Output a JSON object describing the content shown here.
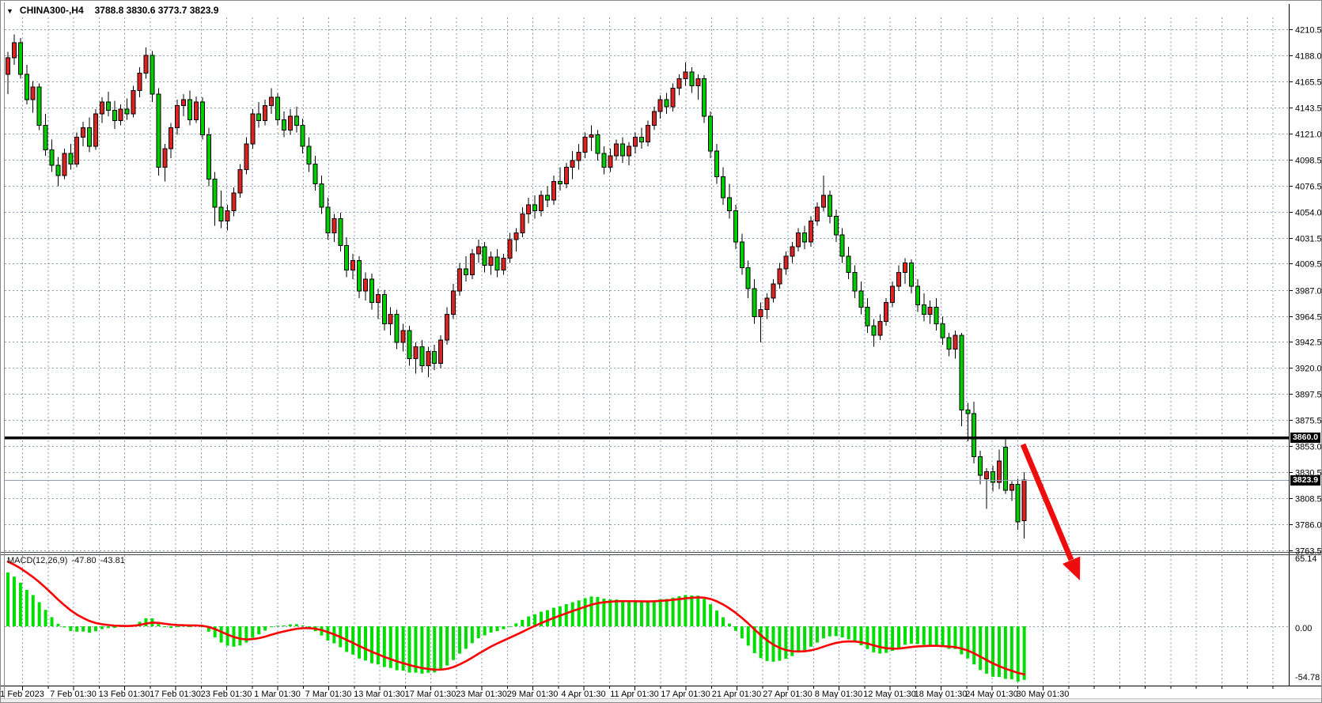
{
  "header": {
    "dropdown_icon": "▼",
    "symbol_period": "CHINA300-,H4",
    "ohlc": "3788.8 3830.6 3773.7 3823.9"
  },
  "indicator": {
    "label": "MACD(12,26,9)",
    "macd_value": "-47.80",
    "signal_value": "-43.81"
  },
  "price_axis": {
    "line_badge": "3860.0",
    "current_badge": "3823.9"
  },
  "macd_axis": {
    "tick_labels": [
      "65.14",
      "0.00",
      "-54.78"
    ]
  },
  "time_axis": {
    "labels": [
      "1 Feb 2023",
      "7 Feb 01:30",
      "13 Feb 01:30",
      "17 Feb 01:30",
      "23 Feb 01:30",
      "1 Mar 01:30",
      "7 Mar 01:30",
      "13 Mar 01:30",
      "17 Mar 01:30",
      "23 Mar 01:30",
      "29 Mar 01:30",
      "4 Apr 01:30",
      "11 Apr 01:30",
      "17 Apr 01:30",
      "21 Apr 01:30",
      "27 Apr 01:30",
      "8 May 01:30",
      "12 May 01:30",
      "18 May 01:30",
      "24 May 01:30",
      "30 May 01:30"
    ]
  },
  "colors": {
    "bull": "#dd2222",
    "bear": "#00cc00",
    "wick": "#000000",
    "grid": "#8a9cae",
    "macd_hist": "#00dd00",
    "macd_signal": "#ff0000",
    "hline": "#000000",
    "current_price_line": "#93a1b0",
    "arrow": "#ee0c0c",
    "badge_bg": "#000000",
    "badge_text": "#ffffff"
  },
  "chart_data": {
    "type": "candlestick",
    "symbol": "CHINA300-",
    "timeframe": "H4",
    "title": "CHINA300-,H4",
    "grid": "dashed",
    "price_ticks": [
      4210.5,
      4188.0,
      4165.5,
      4143.5,
      4121.0,
      4098.5,
      4076.5,
      4054.0,
      4031.5,
      4009.5,
      3987.0,
      3964.5,
      3942.5,
      3920.0,
      3897.5,
      3875.5,
      3853.0,
      3830.5,
      3808.5,
      3786.0,
      3763.5
    ],
    "price_range": [
      3763.5,
      4210.5
    ],
    "macd_ticks": [
      65.14,
      0.0,
      -54.78
    ],
    "macd_range": [
      -54.78,
      65.14
    ],
    "horizontal_line": 3860.0,
    "current_price": 3823.9,
    "last_bar": {
      "open": 3788.8,
      "high": 3830.6,
      "low": 3773.7,
      "close": 3823.9
    },
    "indicator": {
      "name": "MACD",
      "fast": 12,
      "slow": 26,
      "signal": 9,
      "values": [
        -47.8,
        -43.81
      ]
    },
    "objects": [
      {
        "type": "horizontal-line",
        "price": 3860.0
      },
      {
        "type": "arrow",
        "direction": "down-right",
        "color": "#ee0c0c"
      }
    ],
    "candles": [
      [
        4172,
        4191,
        4155,
        4186
      ],
      [
        4186,
        4206,
        4180,
        4199
      ],
      [
        4199,
        4203,
        4168,
        4172
      ],
      [
        4172,
        4180,
        4146,
        4150
      ],
      [
        4150,
        4166,
        4139,
        4161
      ],
      [
        4161,
        4164,
        4124,
        4128
      ],
      [
        4128,
        4138,
        4102,
        4107
      ],
      [
        4107,
        4116,
        4088,
        4094
      ],
      [
        4094,
        4101,
        4076,
        4085
      ],
      [
        4085,
        4108,
        4082,
        4104
      ],
      [
        4104,
        4112,
        4090,
        4095
      ],
      [
        4095,
        4122,
        4092,
        4118
      ],
      [
        4118,
        4131,
        4110,
        4126
      ],
      [
        4126,
        4135,
        4105,
        4110
      ],
      [
        4110,
        4142,
        4107,
        4138
      ],
      [
        4138,
        4152,
        4130,
        4148
      ],
      [
        4148,
        4157,
        4136,
        4141
      ],
      [
        4141,
        4149,
        4125,
        4132
      ],
      [
        4132,
        4146,
        4128,
        4142
      ],
      [
        4142,
        4151,
        4133,
        4138
      ],
      [
        4138,
        4162,
        4135,
        4158
      ],
      [
        4158,
        4178,
        4152,
        4173
      ],
      [
        4173,
        4195,
        4168,
        4188
      ],
      [
        4188,
        4192,
        4148,
        4155
      ],
      [
        4155,
        4160,
        4085,
        4092
      ],
      [
        4092,
        4112,
        4080,
        4108
      ],
      [
        4108,
        4130,
        4100,
        4126
      ],
      [
        4126,
        4150,
        4120,
        4145
      ],
      [
        4145,
        4155,
        4136,
        4150
      ],
      [
        4150,
        4158,
        4128,
        4133
      ],
      [
        4133,
        4153,
        4130,
        4148
      ],
      [
        4148,
        4152,
        4116,
        4120
      ],
      [
        4120,
        4126,
        4076,
        4082
      ],
      [
        4082,
        4088,
        4042,
        4058
      ],
      [
        4058,
        4072,
        4040,
        4046
      ],
      [
        4046,
        4060,
        4038,
        4055
      ],
      [
        4055,
        4075,
        4050,
        4070
      ],
      [
        4070,
        4095,
        4066,
        4090
      ],
      [
        4090,
        4118,
        4086,
        4112
      ],
      [
        4112,
        4142,
        4108,
        4138
      ],
      [
        4138,
        4148,
        4126,
        4132
      ],
      [
        4132,
        4150,
        4128,
        4145
      ],
      [
        4145,
        4160,
        4138,
        4152
      ],
      [
        4152,
        4156,
        4128,
        4133
      ],
      [
        4133,
        4140,
        4118,
        4124
      ],
      [
        4124,
        4142,
        4120,
        4136
      ],
      [
        4136,
        4144,
        4122,
        4128
      ],
      [
        4128,
        4134,
        4104,
        4110
      ],
      [
        4110,
        4118,
        4088,
        4095
      ],
      [
        4095,
        4102,
        4072,
        4078
      ],
      [
        4078,
        4085,
        4052,
        4058
      ],
      [
        4058,
        4066,
        4030,
        4036
      ],
      [
        4036,
        4052,
        4028,
        4048
      ],
      [
        4048,
        4053,
        4020,
        4025
      ],
      [
        4025,
        4032,
        3998,
        4004
      ],
      [
        4004,
        4018,
        3996,
        4012
      ],
      [
        4012,
        4016,
        3980,
        3986
      ],
      [
        3986,
        4002,
        3978,
        3996
      ],
      [
        3996,
        4001,
        3970,
        3976
      ],
      [
        3976,
        3988,
        3962,
        3983
      ],
      [
        3983,
        3987,
        3952,
        3958
      ],
      [
        3958,
        3972,
        3948,
        3966
      ],
      [
        3966,
        3970,
        3936,
        3942
      ],
      [
        3942,
        3958,
        3934,
        3952
      ],
      [
        3952,
        3956,
        3922,
        3928
      ],
      [
        3928,
        3942,
        3915,
        3938
      ],
      [
        3938,
        3944,
        3916,
        3922
      ],
      [
        3922,
        3938,
        3912,
        3934
      ],
      [
        3934,
        3940,
        3918,
        3924
      ],
      [
        3924,
        3948,
        3920,
        3944
      ],
      [
        3944,
        3972,
        3940,
        3966
      ],
      [
        3966,
        3992,
        3962,
        3986
      ],
      [
        3986,
        4010,
        3982,
        4005
      ],
      [
        4005,
        4016,
        3994,
        4000
      ],
      [
        4000,
        4022,
        3996,
        4018
      ],
      [
        4018,
        4030,
        4010,
        4024
      ],
      [
        4024,
        4028,
        4002,
        4008
      ],
      [
        4008,
        4020,
        4000,
        4015
      ],
      [
        4015,
        4022,
        3998,
        4004
      ],
      [
        4004,
        4018,
        4000,
        4014
      ],
      [
        4014,
        4036,
        4010,
        4030
      ],
      [
        4030,
        4040,
        4020,
        4036
      ],
      [
        4036,
        4058,
        4032,
        4052
      ],
      [
        4052,
        4066,
        4044,
        4060
      ],
      [
        4060,
        4068,
        4048,
        4055
      ],
      [
        4055,
        4072,
        4050,
        4068
      ],
      [
        4068,
        4076,
        4058,
        4064
      ],
      [
        4064,
        4085,
        4060,
        4080
      ],
      [
        4080,
        4092,
        4072,
        4078
      ],
      [
        4078,
        4096,
        4074,
        4092
      ],
      [
        4092,
        4106,
        4082,
        4098
      ],
      [
        4098,
        4112,
        4090,
        4105
      ],
      [
        4105,
        4122,
        4100,
        4118
      ],
      [
        4118,
        4128,
        4106,
        4120
      ],
      [
        4120,
        4124,
        4098,
        4104
      ],
      [
        4104,
        4110,
        4086,
        4092
      ],
      [
        4092,
        4108,
        4088,
        4102
      ],
      [
        4102,
        4116,
        4098,
        4112
      ],
      [
        4112,
        4118,
        4096,
        4102
      ],
      [
        4102,
        4114,
        4094,
        4110
      ],
      [
        4110,
        4122,
        4104,
        4118
      ],
      [
        4118,
        4126,
        4108,
        4114
      ],
      [
        4114,
        4132,
        4110,
        4128
      ],
      [
        4128,
        4144,
        4124,
        4140
      ],
      [
        4140,
        4154,
        4134,
        4150
      ],
      [
        4150,
        4156,
        4138,
        4144
      ],
      [
        4144,
        4164,
        4140,
        4160
      ],
      [
        4160,
        4172,
        4154,
        4168
      ],
      [
        4168,
        4182,
        4162,
        4174
      ],
      [
        4174,
        4178,
        4156,
        4162
      ],
      [
        4162,
        4172,
        4150,
        4168
      ],
      [
        4168,
        4171,
        4130,
        4136
      ],
      [
        4136,
        4140,
        4100,
        4106
      ],
      [
        4106,
        4112,
        4078,
        4084
      ],
      [
        4084,
        4092,
        4060,
        4066
      ],
      [
        4066,
        4078,
        4048,
        4055
      ],
      [
        4055,
        4060,
        4022,
        4028
      ],
      [
        4028,
        4035,
        4000,
        4006
      ],
      [
        4006,
        4012,
        3980,
        3988
      ],
      [
        3988,
        3996,
        3958,
        3964
      ],
      [
        3964,
        3976,
        3942,
        3970
      ],
      [
        3970,
        3984,
        3962,
        3980
      ],
      [
        3980,
        3996,
        3976,
        3992
      ],
      [
        3992,
        4010,
        3988,
        4005
      ],
      [
        4005,
        4020,
        4000,
        4016
      ],
      [
        4016,
        4028,
        4010,
        4024
      ],
      [
        4024,
        4040,
        4020,
        4036
      ],
      [
        4036,
        4042,
        4022,
        4028
      ],
      [
        4028,
        4050,
        4024,
        4046
      ],
      [
        4046,
        4062,
        4042,
        4058
      ],
      [
        4058,
        4085,
        4054,
        4068
      ],
      [
        4068,
        4072,
        4044,
        4050
      ],
      [
        4050,
        4056,
        4028,
        4034
      ],
      [
        4034,
        4040,
        4010,
        4016
      ],
      [
        4016,
        4024,
        3996,
        4002
      ],
      [
        4002,
        4008,
        3980,
        3986
      ],
      [
        3986,
        3994,
        3966,
        3972
      ],
      [
        3972,
        3980,
        3950,
        3956
      ],
      [
        3956,
        3962,
        3938,
        3948
      ],
      [
        3948,
        3966,
        3944,
        3960
      ],
      [
        3960,
        3980,
        3956,
        3976
      ],
      [
        3976,
        3994,
        3972,
        3990
      ],
      [
        3990,
        4008,
        3986,
        4002
      ],
      [
        4002,
        4014,
        3992,
        4010
      ],
      [
        4010,
        4013,
        3984,
        3990
      ],
      [
        3990,
        3996,
        3968,
        3974
      ],
      [
        3974,
        3984,
        3960,
        3966
      ],
      [
        3966,
        3978,
        3958,
        3972
      ],
      [
        3972,
        3980,
        3952,
        3958
      ],
      [
        3958,
        3964,
        3940,
        3946
      ],
      [
        3946,
        3950,
        3930,
        3936
      ],
      [
        3936,
        3952,
        3928,
        3948
      ],
      [
        3948,
        3950,
        3870,
        3884
      ],
      [
        3884,
        3890,
        3857,
        3881
      ],
      [
        3881,
        3891,
        3838,
        3844
      ],
      [
        3844,
        3849,
        3820,
        3828
      ],
      [
        3825,
        3834,
        3799,
        3831
      ],
      [
        3831,
        3836,
        3814,
        3822
      ],
      [
        3822,
        3850,
        3816,
        3840
      ],
      [
        3852,
        3859,
        3812,
        3815
      ],
      [
        3815,
        3823,
        3806,
        3820
      ],
      [
        3820,
        3825,
        3781,
        3788
      ],
      [
        3788.8,
        3830.6,
        3773.7,
        3823.9
      ]
    ]
  }
}
